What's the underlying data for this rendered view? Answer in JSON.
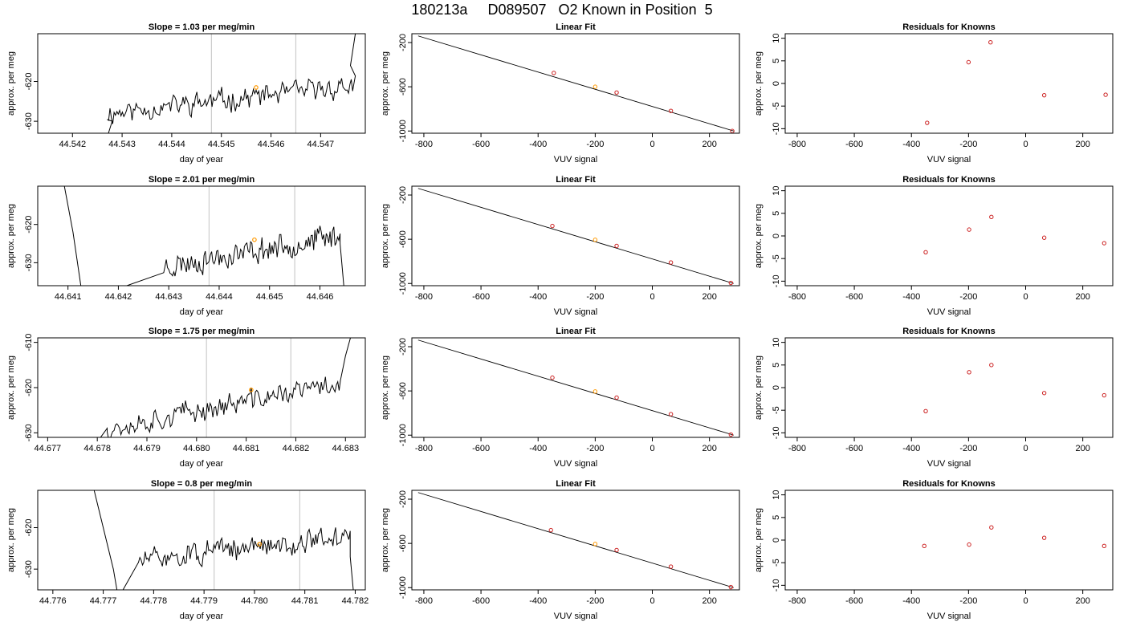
{
  "figure_title": "180213a     D089507   O2 Known in Position  5",
  "colors": {
    "trace": "#000000",
    "box": "#000000",
    "vline": "#cccccc",
    "point_orange": "#ff9900",
    "point_red": "#cc2222"
  },
  "chart_data": [
    {
      "type": "line",
      "title": "Slope =  1.03  per meg/min",
      "xlabel": "day of year",
      "ylabel": "approx. per meg",
      "xlim": [
        44.5413,
        44.5479
      ],
      "ylim": [
        -633,
        -608
      ],
      "xticks": [
        "44.542",
        "44.543",
        "44.544",
        "44.545",
        "44.546",
        "44.547"
      ],
      "xtick_values": [
        44.542,
        44.543,
        44.544,
        44.545,
        44.546,
        44.547
      ],
      "yticks": [
        "-630",
        "-620"
      ],
      "ytick_values": [
        -630,
        -620
      ],
      "vlines": [
        44.5448,
        44.5465
      ],
      "highlight": {
        "x": 44.5457,
        "y": -621.5
      },
      "trace": {
        "start": 44.5427,
        "end": 44.5477,
        "n": 180,
        "seed": 11,
        "base_start": -628,
        "base_end": -621,
        "amp": 2.2,
        "head": [
          [
            44.5427,
            -634
          ],
          [
            44.5428,
            -630
          ]
        ],
        "tail": [
          [
            44.5476,
            -616
          ],
          [
            44.5477,
            -608
          ]
        ]
      }
    },
    {
      "type": "line",
      "title": "Linear Fit",
      "xlabel": "VUV signal",
      "ylabel": "approx. per meg",
      "xlim": [
        -842,
        305
      ],
      "ylim": [
        -1020,
        -120
      ],
      "xticks": [
        "-800",
        "-600",
        "-400",
        "-200",
        "0",
        "200"
      ],
      "xtick_values": [
        -800,
        -600,
        -400,
        -200,
        0,
        200
      ],
      "yticks": [
        "-1000",
        "-600",
        "-200"
      ],
      "ytick_values": [
        -1000,
        -600,
        -200
      ],
      "line": [
        [
          -820,
          -140
        ],
        [
          285,
          -1000
        ]
      ],
      "points": [
        [
          -345,
          -475,
          "red"
        ],
        [
          -200,
          -600,
          "orange"
        ],
        [
          -125,
          -652,
          "red"
        ],
        [
          65,
          -818,
          "red"
        ],
        [
          280,
          -1000,
          "red"
        ]
      ]
    },
    {
      "type": "scatter",
      "title": "Residuals for Knowns",
      "xlabel": "VUV signal",
      "ylabel": "approx. per meg",
      "xlim": [
        -842,
        305
      ],
      "ylim": [
        -11,
        11
      ],
      "xticks": [
        "-800",
        "-600",
        "-400",
        "-200",
        "0",
        "200"
      ],
      "xtick_values": [
        -800,
        -600,
        -400,
        -200,
        0,
        200
      ],
      "yticks": [
        "-10",
        "-5",
        "0",
        "5",
        "10"
      ],
      "ytick_values": [
        -10,
        -5,
        0,
        5,
        10
      ],
      "points": [
        [
          -345,
          -8.7
        ],
        [
          -200,
          4.7
        ],
        [
          -123,
          9.1
        ],
        [
          65,
          -2.6
        ],
        [
          280,
          -2.5
        ]
      ]
    },
    {
      "type": "line",
      "title": "Slope =  2.01  per meg/min",
      "xlabel": "day of year",
      "ylabel": "approx. per meg",
      "xlim": [
        44.6404,
        44.6469
      ],
      "ylim": [
        -636,
        -610
      ],
      "xticks": [
        "44.641",
        "44.642",
        "44.643",
        "44.644",
        "44.645",
        "44.646"
      ],
      "xtick_values": [
        44.641,
        44.642,
        44.643,
        44.644,
        44.645,
        44.646
      ],
      "yticks": [
        "-630",
        "-620"
      ],
      "ytick_values": [
        -630,
        -620
      ],
      "vlines": [
        44.6438,
        44.6455
      ],
      "highlight": {
        "x": 44.6447,
        "y": -624
      },
      "trace": {
        "start": 44.6429,
        "end": 44.6464,
        "n": 140,
        "seed": 23,
        "base_start": -631,
        "base_end": -623,
        "amp": 2.6,
        "head": [
          [
            44.6409,
            -608
          ],
          [
            44.6411,
            -622
          ],
          [
            44.6413,
            -640
          ]
        ],
        "tail": [
          [
            44.6464,
            -625
          ],
          [
            44.6465,
            -640
          ]
        ]
      }
    },
    {
      "type": "line",
      "title": "Linear Fit",
      "xlabel": "VUV signal",
      "ylabel": "approx. per meg",
      "xlim": [
        -842,
        305
      ],
      "ylim": [
        -1020,
        -120
      ],
      "xticks": [
        "-800",
        "-600",
        "-400",
        "-200",
        "0",
        "200"
      ],
      "xtick_values": [
        -800,
        -600,
        -400,
        -200,
        0,
        200
      ],
      "yticks": [
        "-1000",
        "-600",
        "-200"
      ],
      "ytick_values": [
        -1000,
        -600,
        -200
      ],
      "line": [
        [
          -820,
          -140
        ],
        [
          285,
          -1000
        ]
      ],
      "points": [
        [
          -350,
          -480,
          "red"
        ],
        [
          -200,
          -605,
          "orange"
        ],
        [
          -125,
          -660,
          "red"
        ],
        [
          65,
          -810,
          "red"
        ],
        [
          275,
          -995,
          "red"
        ]
      ]
    },
    {
      "type": "scatter",
      "title": "Residuals for Knowns",
      "xlabel": "VUV signal",
      "ylabel": "approx. per meg",
      "xlim": [
        -842,
        305
      ],
      "ylim": [
        -11,
        11
      ],
      "xticks": [
        "-800",
        "-600",
        "-400",
        "-200",
        "0",
        "200"
      ],
      "xtick_values": [
        -800,
        -600,
        -400,
        -200,
        0,
        200
      ],
      "yticks": [
        "-10",
        "-5",
        "0",
        "5",
        "10"
      ],
      "ytick_values": [
        -10,
        -5,
        0,
        5,
        10
      ],
      "points": [
        [
          -350,
          -3.6
        ],
        [
          -198,
          1.4
        ],
        [
          -120,
          4.2
        ],
        [
          65,
          -0.4
        ],
        [
          275,
          -1.6
        ]
      ]
    },
    {
      "type": "line",
      "title": "Slope =  1.75  per meg/min",
      "xlabel": "day of year",
      "ylabel": "approx. per meg",
      "xlim": [
        44.6768,
        44.6834
      ],
      "ylim": [
        -631,
        -609
      ],
      "xticks": [
        "44.677",
        "44.678",
        "44.679",
        "44.680",
        "44.681",
        "44.682",
        "44.683"
      ],
      "xtick_values": [
        44.677,
        44.678,
        44.679,
        44.68,
        44.681,
        44.682,
        44.683
      ],
      "yticks": [
        "-630",
        "-620",
        "-610"
      ],
      "ytick_values": [
        -630,
        -620,
        -610
      ],
      "vlines": [
        44.6802,
        44.6819
      ],
      "highlight": {
        "x": 44.6811,
        "y": -620.5
      },
      "trace": {
        "start": 44.6782,
        "end": 44.6829,
        "n": 170,
        "seed": 37,
        "base_start": -629,
        "base_end": -619,
        "amp": 2.0,
        "head": [
          [
            44.678,
            -632
          ],
          [
            44.6782,
            -629
          ]
        ],
        "tail": [
          [
            44.683,
            -613
          ],
          [
            44.6831,
            -609
          ]
        ]
      }
    },
    {
      "type": "line",
      "title": "Linear Fit",
      "xlabel": "VUV signal",
      "ylabel": "approx. per meg",
      "xlim": [
        -842,
        305
      ],
      "ylim": [
        -1020,
        -120
      ],
      "xticks": [
        "-800",
        "-600",
        "-400",
        "-200",
        "0",
        "200"
      ],
      "xtick_values": [
        -800,
        -600,
        -400,
        -200,
        0,
        200
      ],
      "yticks": [
        "-1000",
        "-600",
        "-200"
      ],
      "ytick_values": [
        -1000,
        -600,
        -200
      ],
      "line": [
        [
          -820,
          -140
        ],
        [
          285,
          -1000
        ]
      ],
      "points": [
        [
          -350,
          -480,
          "red"
        ],
        [
          -200,
          -605,
          "orange"
        ],
        [
          -125,
          -660,
          "red"
        ],
        [
          65,
          -810,
          "red"
        ],
        [
          275,
          -995,
          "red"
        ]
      ]
    },
    {
      "type": "scatter",
      "title": "Residuals for Knowns",
      "xlabel": "VUV signal",
      "ylabel": "approx. per meg",
      "xlim": [
        -842,
        305
      ],
      "ylim": [
        -11,
        11
      ],
      "xticks": [
        "-800",
        "-600",
        "-400",
        "-200",
        "0",
        "200"
      ],
      "xtick_values": [
        -800,
        -600,
        -400,
        -200,
        0,
        200
      ],
      "yticks": [
        "-10",
        "-5",
        "0",
        "5",
        "10"
      ],
      "ytick_values": [
        -10,
        -5,
        0,
        5,
        10
      ],
      "points": [
        [
          -350,
          -5.2
        ],
        [
          -198,
          3.4
        ],
        [
          -120,
          5.0
        ],
        [
          65,
          -1.2
        ],
        [
          275,
          -1.7
        ]
      ]
    },
    {
      "type": "line",
      "title": "Slope =  0.8  per meg/min",
      "xlabel": "day of year",
      "ylabel": "approx. per meg",
      "xlim": [
        44.7757,
        44.7822
      ],
      "ylim": [
        -635,
        -611
      ],
      "xticks": [
        "44.776",
        "44.777",
        "44.778",
        "44.779",
        "44.780",
        "44.781",
        "44.782"
      ],
      "xtick_values": [
        44.776,
        44.777,
        44.778,
        44.779,
        44.78,
        44.781,
        44.782
      ],
      "yticks": [
        "-630",
        "-620"
      ],
      "ytick_values": [
        -630,
        -620
      ],
      "vlines": [
        44.7792,
        44.7809
      ],
      "highlight": {
        "x": 44.7801,
        "y": -624
      },
      "trace": {
        "start": 44.7777,
        "end": 44.7819,
        "n": 160,
        "seed": 51,
        "base_start": -628,
        "base_end": -622,
        "amp": 2.2,
        "head": [
          [
            44.7768,
            -610
          ],
          [
            44.777,
            -620
          ],
          [
            44.7772,
            -630
          ],
          [
            44.7773,
            -637
          ]
        ],
        "tail": [
          [
            44.7819,
            -627
          ],
          [
            44.782,
            -640
          ]
        ]
      }
    },
    {
      "type": "line",
      "title": "Linear Fit",
      "xlabel": "VUV signal",
      "ylabel": "approx. per meg",
      "xlim": [
        -842,
        305
      ],
      "ylim": [
        -1020,
        -120
      ],
      "xticks": [
        "-800",
        "-600",
        "-400",
        "-200",
        "0",
        "200"
      ],
      "xtick_values": [
        -800,
        -600,
        -400,
        -200,
        0,
        200
      ],
      "yticks": [
        "-1000",
        "-600",
        "-200"
      ],
      "ytick_values": [
        -1000,
        -600,
        -200
      ],
      "line": [
        [
          -820,
          -140
        ],
        [
          285,
          -1000
        ]
      ],
      "points": [
        [
          -355,
          -480,
          "red"
        ],
        [
          -200,
          -605,
          "orange"
        ],
        [
          -125,
          -660,
          "red"
        ],
        [
          65,
          -810,
          "red"
        ],
        [
          275,
          -995,
          "red"
        ]
      ]
    },
    {
      "type": "scatter",
      "title": "Residuals for Knowns",
      "xlabel": "VUV signal",
      "ylabel": "approx. per meg",
      "xlim": [
        -842,
        305
      ],
      "ylim": [
        -11,
        11
      ],
      "xticks": [
        "-800",
        "-600",
        "-400",
        "-200",
        "0",
        "200"
      ],
      "xtick_values": [
        -800,
        -600,
        -400,
        -200,
        0,
        200
      ],
      "yticks": [
        "-10",
        "-5",
        "0",
        "5",
        "10"
      ],
      "ytick_values": [
        -10,
        -5,
        0,
        5,
        10
      ],
      "points": [
        [
          -355,
          -1.3
        ],
        [
          -198,
          -1.0
        ],
        [
          -120,
          2.8
        ],
        [
          65,
          0.5
        ],
        [
          275,
          -1.3
        ]
      ]
    }
  ]
}
